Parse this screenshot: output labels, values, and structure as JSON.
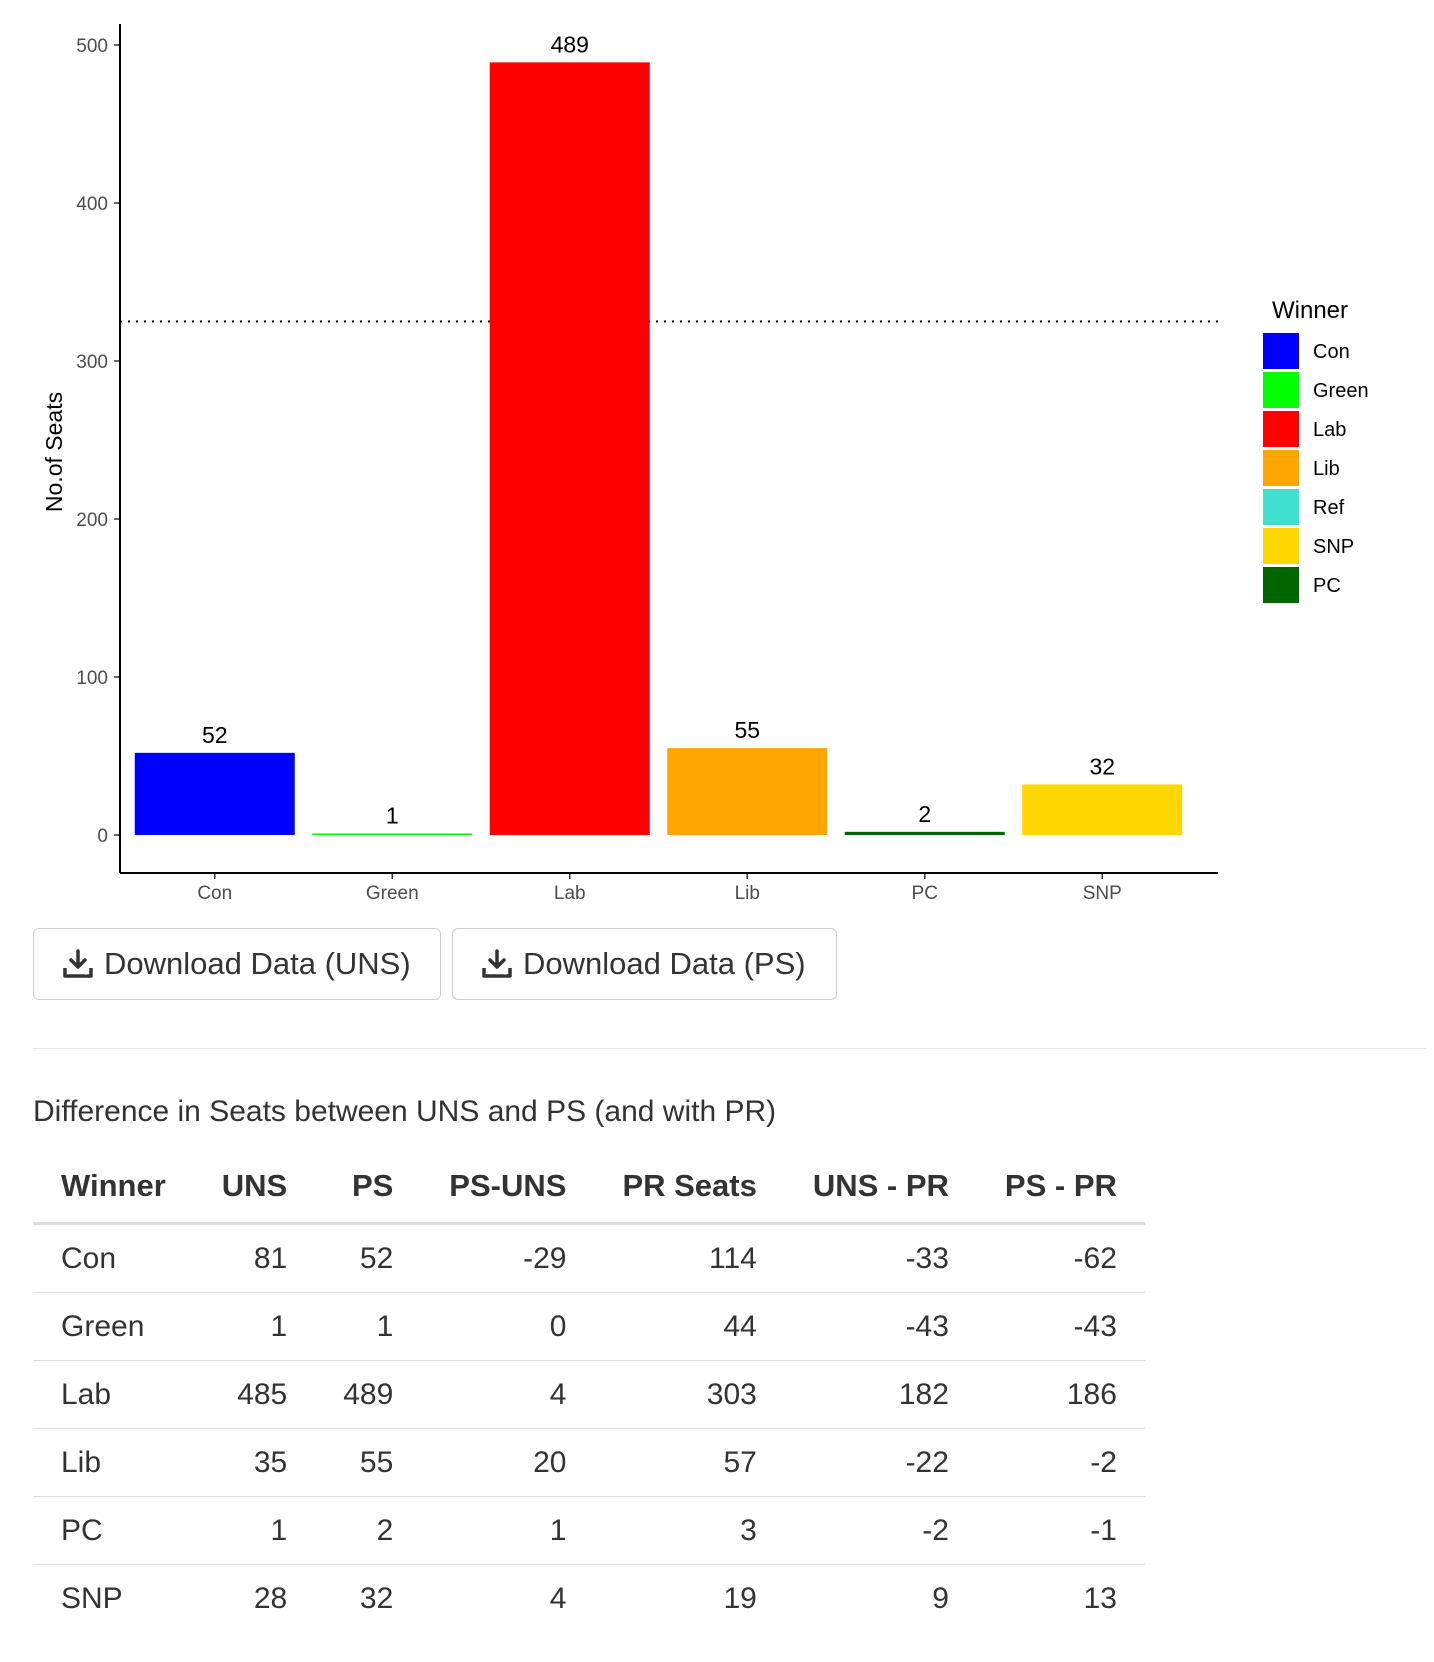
{
  "chart_data": {
    "type": "bar",
    "categories": [
      "Con",
      "Green",
      "Lab",
      "Lib",
      "PC",
      "SNP"
    ],
    "values": [
      52,
      1,
      489,
      55,
      2,
      32
    ],
    "bar_colors": [
      "#0000FF",
      "#00FF00",
      "#FF0000",
      "#FFA500",
      "#006400",
      "#FFD700"
    ],
    "data_labels": [
      "52",
      "1",
      "489",
      "55",
      "2",
      "32"
    ],
    "ylabel": "No.of Seats",
    "xlabel": "",
    "ylim": [
      0,
      500
    ],
    "yticks": [
      0,
      100,
      200,
      300,
      400,
      500
    ],
    "reference_line": {
      "value": 325,
      "style": "dotted"
    },
    "grid": false,
    "legend": {
      "title": "Winner",
      "placement": "right",
      "entries": [
        {
          "label": "Con",
          "color": "#0000FF"
        },
        {
          "label": "Green",
          "color": "#00FF00"
        },
        {
          "label": "Lab",
          "color": "#FF0000"
        },
        {
          "label": "Lib",
          "color": "#FFA500"
        },
        {
          "label": "Ref",
          "color": "#40E0D0"
        },
        {
          "label": "SNP",
          "color": "#FFD700"
        },
        {
          "label": "PC",
          "color": "#006400"
        }
      ]
    }
  },
  "buttons": {
    "download_uns": "Download Data (UNS)",
    "download_ps": "Download Data (PS)",
    "icon": "download-icon"
  },
  "table": {
    "title": "Difference in Seats between UNS and PS (and with PR)",
    "headers": [
      "Winner",
      "UNS",
      "PS",
      "PS-UNS",
      "PR Seats",
      "UNS - PR",
      "PS - PR"
    ],
    "rows": [
      [
        "Con",
        "81",
        "52",
        "-29",
        "114",
        "-33",
        "-62"
      ],
      [
        "Green",
        "1",
        "1",
        "0",
        "44",
        "-43",
        "-43"
      ],
      [
        "Lab",
        "485",
        "489",
        "4",
        "303",
        "182",
        "186"
      ],
      [
        "Lib",
        "35",
        "55",
        "20",
        "57",
        "-22",
        "-2"
      ],
      [
        "PC",
        "1",
        "2",
        "1",
        "3",
        "-2",
        "-1"
      ],
      [
        "SNP",
        "28",
        "32",
        "4",
        "19",
        "9",
        "13"
      ]
    ]
  }
}
